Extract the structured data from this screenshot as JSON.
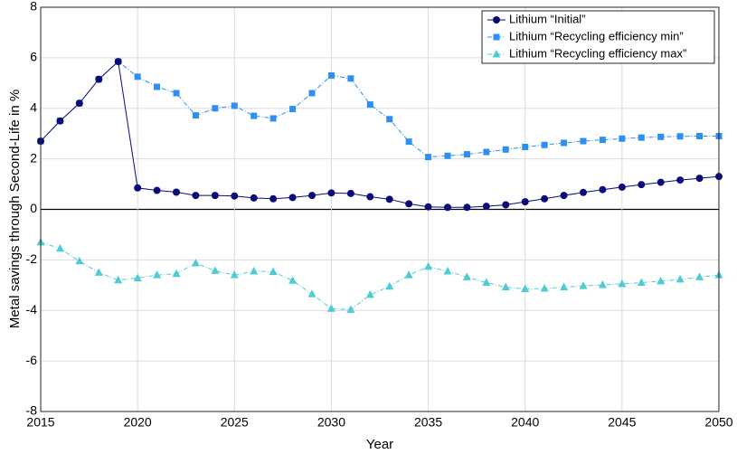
{
  "chart_data": {
    "type": "line",
    "xlabel": "Year",
    "ylabel": "Metal savings through Second-Life in %",
    "x": [
      2015,
      2016,
      2017,
      2018,
      2019,
      2020,
      2021,
      2022,
      2023,
      2024,
      2025,
      2026,
      2027,
      2028,
      2029,
      2030,
      2031,
      2032,
      2033,
      2034,
      2035,
      2036,
      2037,
      2038,
      2039,
      2040,
      2041,
      2042,
      2043,
      2044,
      2045,
      2046,
      2047,
      2048,
      2049,
      2050
    ],
    "xlim": [
      2015,
      2050
    ],
    "xticks": [
      2015,
      2020,
      2025,
      2030,
      2035,
      2040,
      2045,
      2050
    ],
    "ylim": [
      -8,
      8
    ],
    "yticks": [
      -8,
      -6,
      -4,
      -2,
      0,
      2,
      4,
      6,
      8
    ],
    "grid": true,
    "legend": "top-right",
    "series": [
      {
        "name": "Lithium “Recycling efficiency min”",
        "color": "#2e8ff0",
        "marker": "square",
        "dash": "dashdot",
        "values": [
          2.7,
          3.5,
          4.2,
          5.15,
          5.85,
          5.25,
          4.85,
          4.6,
          3.72,
          4.0,
          4.1,
          3.7,
          3.6,
          3.97,
          4.6,
          5.3,
          5.18,
          4.15,
          3.57,
          2.68,
          2.07,
          2.12,
          2.18,
          2.27,
          2.37,
          2.47,
          2.55,
          2.63,
          2.7,
          2.75,
          2.8,
          2.84,
          2.87,
          2.89,
          2.9,
          2.9
        ]
      },
      {
        "name": "Lithium “Initial”",
        "color": "#0a0a78",
        "marker": "circle",
        "dash": "solid",
        "values": [
          2.7,
          3.5,
          4.2,
          5.15,
          5.85,
          0.85,
          0.75,
          0.68,
          0.55,
          0.55,
          0.53,
          0.45,
          0.42,
          0.47,
          0.55,
          0.65,
          0.63,
          0.5,
          0.4,
          0.22,
          0.1,
          0.08,
          0.08,
          0.12,
          0.18,
          0.3,
          0.42,
          0.55,
          0.67,
          0.78,
          0.88,
          0.98,
          1.07,
          1.16,
          1.23,
          1.3
        ]
      },
      {
        "name": "Lithium “Recycling efficiency max”",
        "color": "#4fcbd6",
        "marker": "triangle",
        "dash": "dashdot",
        "values": [
          -1.3,
          -1.55,
          -2.05,
          -2.5,
          -2.8,
          -2.72,
          -2.6,
          -2.55,
          -2.13,
          -2.43,
          -2.6,
          -2.45,
          -2.47,
          -2.82,
          -3.35,
          -3.93,
          -3.97,
          -3.38,
          -3.05,
          -2.6,
          -2.27,
          -2.45,
          -2.68,
          -2.9,
          -3.08,
          -3.15,
          -3.13,
          -3.08,
          -3.03,
          -2.99,
          -2.95,
          -2.9,
          -2.84,
          -2.77,
          -2.68,
          -2.6
        ]
      }
    ]
  }
}
